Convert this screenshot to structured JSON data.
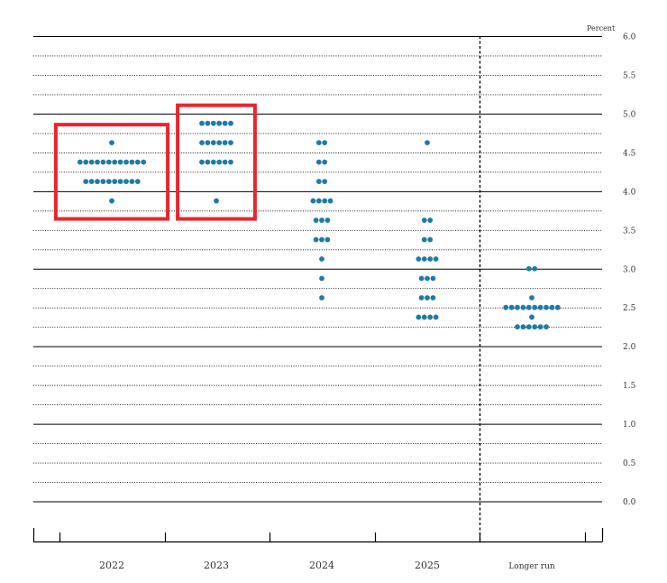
{
  "chart_data": {
    "type": "scatter",
    "ylabel": "Percent",
    "ylim": [
      0,
      6
    ],
    "yticks": [
      "0.0",
      "0.5",
      "1.0",
      "1.5",
      "2.0",
      "2.5",
      "3.0",
      "3.5",
      "4.0",
      "4.5",
      "5.0",
      "5.5",
      "6.0"
    ],
    "categories": [
      "2022",
      "2023",
      "2024",
      "2025",
      "Longer run"
    ],
    "series": [
      {
        "category": "2022",
        "dots": [
          {
            "y": 3.875,
            "count": 1
          },
          {
            "y": 4.125,
            "count": 10
          },
          {
            "y": 4.375,
            "count": 12
          },
          {
            "y": 4.625,
            "count": 1
          }
        ]
      },
      {
        "category": "2023",
        "dots": [
          {
            "y": 3.875,
            "count": 1
          },
          {
            "y": 4.375,
            "count": 6
          },
          {
            "y": 4.625,
            "count": 6
          },
          {
            "y": 4.875,
            "count": 6
          }
        ]
      },
      {
        "category": "2024",
        "dots": [
          {
            "y": 2.625,
            "count": 1
          },
          {
            "y": 2.875,
            "count": 1
          },
          {
            "y": 3.125,
            "count": 1
          },
          {
            "y": 3.375,
            "count": 3
          },
          {
            "y": 3.625,
            "count": 3
          },
          {
            "y": 3.875,
            "count": 4
          },
          {
            "y": 4.125,
            "count": 2
          },
          {
            "y": 4.375,
            "count": 2
          },
          {
            "y": 4.625,
            "count": 2
          }
        ]
      },
      {
        "category": "2025",
        "dots": [
          {
            "y": 2.375,
            "count": 4
          },
          {
            "y": 2.625,
            "count": 3
          },
          {
            "y": 2.875,
            "count": 3
          },
          {
            "y": 3.125,
            "count": 4
          },
          {
            "y": 3.375,
            "count": 2
          },
          {
            "y": 3.625,
            "count": 2
          },
          {
            "y": 4.625,
            "count": 1
          }
        ]
      },
      {
        "category": "Longer run",
        "dots": [
          {
            "y": 2.25,
            "count": 6
          },
          {
            "y": 2.375,
            "count": 1
          },
          {
            "y": 2.5,
            "count": 10
          },
          {
            "y": 2.625,
            "count": 1
          },
          {
            "y": 3.0,
            "count": 2
          }
        ]
      }
    ],
    "highlighted_categories": [
      "2022",
      "2023"
    ],
    "grid": true,
    "dot_color": "#1f7aa8",
    "highlight_color": "#e8262b"
  }
}
